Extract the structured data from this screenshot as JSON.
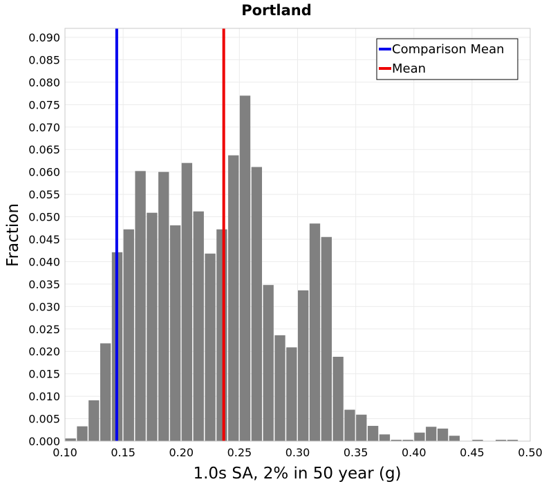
{
  "chart_data": {
    "type": "bar",
    "title": "Portland",
    "xlabel": "1.0s SA, 2% in 50 year (g)",
    "ylabel": "Fraction",
    "xlim": [
      0.1,
      0.5
    ],
    "ylim": [
      0.0,
      0.092
    ],
    "grid": true,
    "legend_position": "top-right",
    "x_ticks": [
      "0.10",
      "0.15",
      "0.20",
      "0.25",
      "0.30",
      "0.35",
      "0.40",
      "0.45",
      "0.50"
    ],
    "x_tick_values": [
      0.1,
      0.15,
      0.2,
      0.25,
      0.3,
      0.35,
      0.4,
      0.45,
      0.5
    ],
    "y_ticks": [
      "0.000",
      "0.005",
      "0.010",
      "0.015",
      "0.020",
      "0.025",
      "0.030",
      "0.035",
      "0.040",
      "0.045",
      "0.050",
      "0.055",
      "0.060",
      "0.065",
      "0.070",
      "0.075",
      "0.080",
      "0.085",
      "0.090"
    ],
    "y_tick_values": [
      0.0,
      0.005,
      0.01,
      0.015,
      0.02,
      0.025,
      0.03,
      0.035,
      0.04,
      0.045,
      0.05,
      0.055,
      0.06,
      0.065,
      0.07,
      0.075,
      0.08,
      0.085,
      0.09
    ],
    "bin_width": 0.01,
    "bin_starts": [
      0.1,
      0.11,
      0.12,
      0.13,
      0.14,
      0.15,
      0.16,
      0.17,
      0.18,
      0.19,
      0.2,
      0.21,
      0.22,
      0.23,
      0.24,
      0.25,
      0.26,
      0.27,
      0.28,
      0.29,
      0.3,
      0.31,
      0.32,
      0.33,
      0.34,
      0.35,
      0.36,
      0.37,
      0.38,
      0.39,
      0.4,
      0.41,
      0.42,
      0.43,
      0.44,
      0.45,
      0.46,
      0.47,
      0.48
    ],
    "values": [
      0.0006,
      0.0033,
      0.0091,
      0.0218,
      0.0421,
      0.0472,
      0.0602,
      0.0509,
      0.06,
      0.0481,
      0.062,
      0.0512,
      0.0418,
      0.0472,
      0.0637,
      0.077,
      0.0611,
      0.0348,
      0.0236,
      0.0209,
      0.0336,
      0.0485,
      0.0455,
      0.0188,
      0.007,
      0.0059,
      0.0034,
      0.0015,
      0.0003,
      0.0003,
      0.0019,
      0.0032,
      0.0028,
      0.0012,
      0.0,
      0.0003,
      0.0,
      0.0003,
      0.0003
    ],
    "series": [
      {
        "name": "Comparison Mean",
        "type": "vline",
        "x": 0.1445,
        "color": "#0000ee"
      },
      {
        "name": "Mean",
        "type": "vline",
        "x": 0.2365,
        "color": "#ee0000"
      }
    ],
    "bar_color": "#808080"
  }
}
